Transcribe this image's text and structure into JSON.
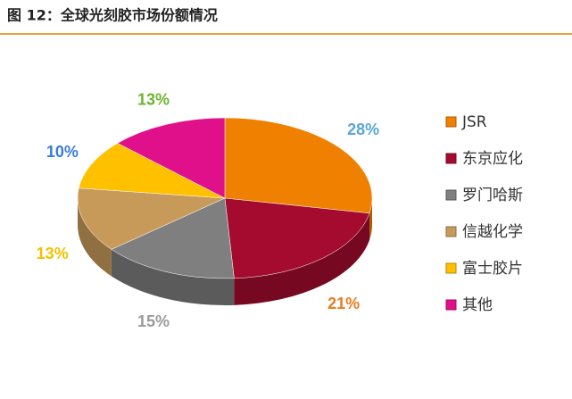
{
  "chart_data": {
    "type": "pie3d",
    "title": "图 12：全球光刻胶市场份额情况",
    "categories": [
      "JSR",
      "东京应化",
      "罗门哈斯",
      "信越化学",
      "富士胶片",
      "其他"
    ],
    "values": [
      28,
      21,
      15,
      13,
      10,
      13
    ],
    "value_labels": [
      "28%",
      "21%",
      "15%",
      "13%",
      "10%",
      "13%"
    ],
    "colors": [
      "#f08000",
      "#a50b2e",
      "#7f7f7f",
      "#c89a5a",
      "#ffc000",
      "#e0108a"
    ],
    "label_colors": [
      "#5aa6d8",
      "#ea7b1e",
      "#9a9a9a",
      "#f5c000",
      "#3a7bd5",
      "#6ab42d"
    ],
    "legend": "right"
  }
}
